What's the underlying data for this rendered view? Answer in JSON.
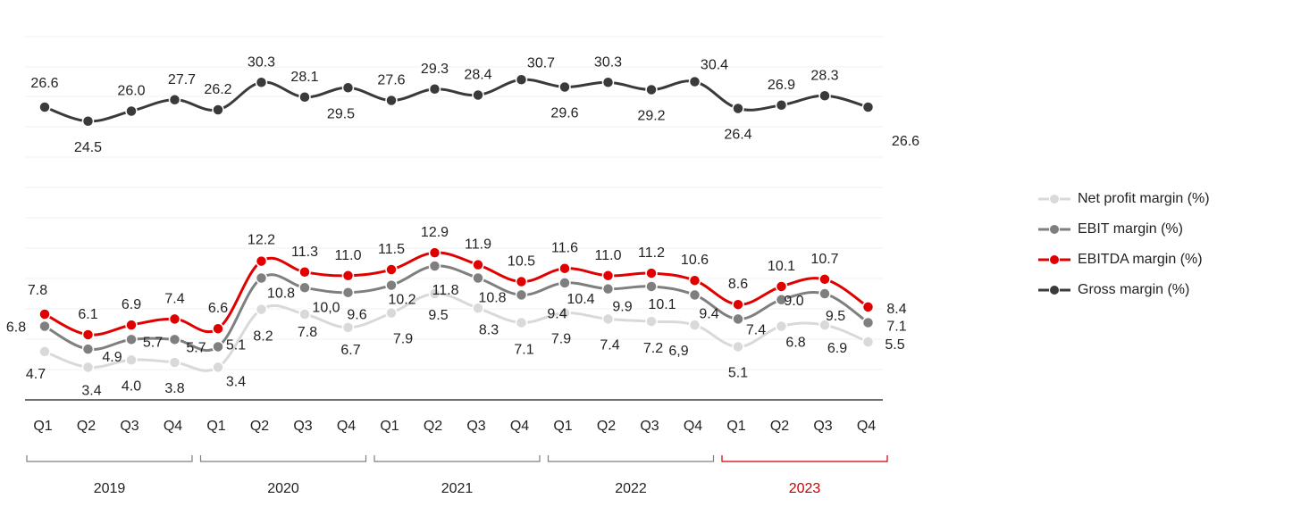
{
  "chart_data": {
    "type": "line",
    "categories": [
      "Q1",
      "Q2",
      "Q3",
      "Q4",
      "Q1",
      "Q2",
      "Q3",
      "Q4",
      "Q1",
      "Q2",
      "Q3",
      "Q4",
      "Q1",
      "Q2",
      "Q3",
      "Q4",
      "Q1",
      "Q2",
      "Q3",
      "Q4"
    ],
    "years": [
      {
        "label": "2019",
        "highlight": false
      },
      {
        "label": "2020",
        "highlight": false
      },
      {
        "label": "2021",
        "highlight": false
      },
      {
        "label": "2022",
        "highlight": false
      },
      {
        "label": "2023",
        "highlight": true
      }
    ],
    "series": [
      {
        "name": "Gross margin (%)",
        "color": "#3a3a3a",
        "values": [
          26.6,
          24.5,
          26.0,
          27.7,
          26.2,
          30.3,
          28.1,
          29.5,
          27.6,
          29.3,
          28.4,
          30.7,
          29.6,
          30.3,
          29.2,
          30.4,
          26.4,
          26.9,
          28.3,
          26.6
        ],
        "labels": [
          "26.6",
          "24.5",
          "26.0",
          "27.7",
          "26.2",
          "30.3",
          "28.1",
          "29.5",
          "27.6",
          "29.3",
          "28.4",
          "30.7",
          "29.6",
          "30.3",
          "29.2",
          "30.4",
          "26.4",
          "26.9",
          "28.3",
          "26.6"
        ]
      },
      {
        "name": "EBITDA margin (%)",
        "color": "#e00000",
        "values": [
          7.8,
          6.1,
          6.9,
          7.4,
          6.6,
          12.2,
          11.3,
          11.0,
          11.5,
          12.9,
          11.9,
          10.5,
          11.6,
          11.0,
          11.2,
          10.6,
          8.6,
          10.1,
          10.7,
          8.4
        ],
        "labels": [
          "7.8",
          "6.1",
          "6.9",
          "7.4",
          "6.6",
          "12.2",
          "11.3",
          "11.0",
          "11.5",
          "12.9",
          "11.9",
          "10.5",
          "11.6",
          "11.0",
          "11.2",
          "10.6",
          "8.6",
          "10.1",
          "10.7",
          "8.4"
        ]
      },
      {
        "name": "EBIT margin (%)",
        "color": "#7f7f7f",
        "values": [
          6.8,
          4.9,
          5.7,
          5.7,
          5.1,
          10.8,
          10.0,
          9.6,
          10.2,
          11.8,
          10.8,
          9.4,
          10.4,
          9.9,
          10.1,
          9.4,
          7.4,
          9.0,
          9.5,
          7.1
        ],
        "labels": [
          "6.8",
          "4.9",
          "5.7",
          "5.7",
          "5.1",
          "10.8",
          "10,0",
          "9.6",
          "10.2",
          "11.8",
          "10.8",
          "9.4",
          "10.4",
          "9.9",
          "10.1",
          "9.4",
          "7.4",
          "9.0",
          "9.5",
          "7.1"
        ]
      },
      {
        "name": "Net profit margin (%)",
        "color": "#d9d9d9",
        "values": [
          4.7,
          3.4,
          4.0,
          3.8,
          3.4,
          8.2,
          7.8,
          6.7,
          7.9,
          9.5,
          8.3,
          7.1,
          7.9,
          7.4,
          7.2,
          6.9,
          5.1,
          6.8,
          6.9,
          5.5
        ],
        "labels": [
          "4.7",
          "3.4",
          "4.0",
          "3.8",
          "3.4",
          "8.2",
          "7.8",
          "6.7",
          "7.9",
          "9.5",
          "8.3",
          "7.1",
          "7.9",
          "7.4",
          "7.2",
          "6,9",
          "5.1",
          "6.8",
          "6.9",
          "5.5"
        ]
      }
    ],
    "legend_order": [
      "Net profit margin (%)",
      "EBIT margin (%)",
      "EBITDA margin (%)",
      "Gross margin (%)"
    ],
    "legend_position": "right",
    "grid": true,
    "accent_color": "#cc0000"
  }
}
